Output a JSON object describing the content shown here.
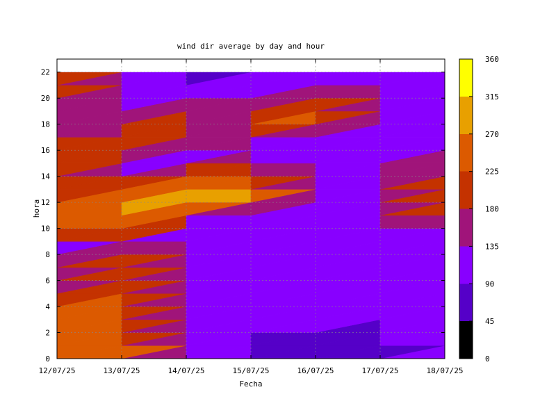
{
  "chart_data": {
    "type": "heatmap",
    "title": "wind dir average by day and hour",
    "xlabel": "Fecha",
    "ylabel": "hora",
    "x_ticks": [
      "12/07/25",
      "13/07/25",
      "14/07/25",
      "15/07/25",
      "16/07/25",
      "17/07/25",
      "18/07/25"
    ],
    "xlim": [
      "12/07/25",
      "18/07/25"
    ],
    "y_ticks": [
      0,
      2,
      4,
      6,
      8,
      10,
      12,
      14,
      16,
      18,
      20,
      22
    ],
    "ylim": [
      0,
      23
    ],
    "grid": true,
    "colorbar": {
      "ticks": [
        0,
        45,
        90,
        135,
        180,
        225,
        270,
        315,
        360
      ],
      "range": [
        0,
        360
      ],
      "colors": [
        "#000000",
        "#5500c8",
        "#8800ff",
        "#a0147a",
        "#c43200",
        "#dc5a00",
        "#e8a000",
        "#ffff00"
      ]
    },
    "rows": [
      {
        "date": "12/07/25",
        "values": [
          240,
          260,
          265,
          270,
          245,
          140,
          120,
          110,
          115,
          130,
          190,
          200,
          205,
          215,
          215,
          220,
          165,
          160,
          180,
          200,
          210,
          250,
          300,
          300
        ]
      },
      {
        "date": "13/07/25",
        "values": [
          300,
          265,
          250,
          240,
          230,
          240,
          235,
          230,
          235,
          150,
          305,
          300,
          290,
          215,
          120,
          120,
          210,
          230,
          130,
          110,
          120,
          150,
          120,
          110
        ]
      },
      {
        "date": "14/07/25",
        "values": [
          110,
          115,
          110,
          105,
          108,
          112,
          110,
          110,
          110,
          110,
          115,
          120,
          295,
          280,
          250,
          140,
          120,
          118,
          210,
          200,
          150,
          90,
          80,
          75
        ]
      },
      {
        "date": "15/07/25",
        "values": [
          80,
          82,
          85,
          90,
          88,
          85,
          82,
          80,
          85,
          90,
          95,
          100,
          290,
          285,
          240,
          170,
          115,
          190,
          175,
          110,
          105,
          100,
          95,
          90
        ]
      },
      {
        "date": "16/07/25",
        "values": [
          80,
          85,
          90,
          95,
          100,
          105,
          110,
          112,
          115,
          115,
          112,
          110,
          108,
          105,
          104,
          103,
          90,
          85,
          240,
          260,
          220,
          170,
          100,
          110
        ]
      },
      {
        "date": "17/07/25",
        "values": [
          70,
          75,
          80,
          85,
          90,
          95,
          100,
          105,
          108,
          112,
          115,
          118,
          120,
          118,
          116,
          114,
          112,
          110,
          108,
          105,
          102,
          100,
          105,
          110
        ]
      },
      {
        "date": "18/07/25",
        "values": [
          110,
          112,
          115,
          118,
          120,
          122,
          125,
          128,
          130,
          140,
          150,
          200,
          240,
          250,
          210,
          180,
          150,
          130,
          140,
          150,
          140,
          120,
          100,
          90
        ]
      }
    ]
  }
}
